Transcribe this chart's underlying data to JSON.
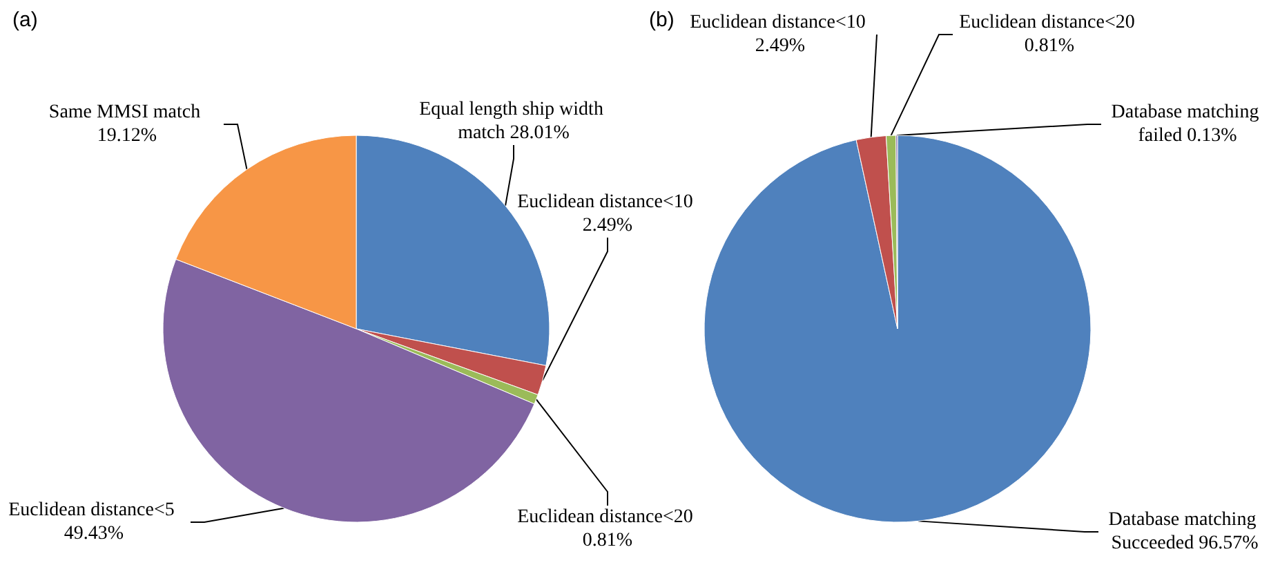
{
  "chart_data": [
    {
      "type": "pie",
      "title": "(a)",
      "categories": [
        "Equal length ship width match",
        "Euclidean distance<10",
        "Euclidean distance<20",
        "Euclidean distance<5",
        "Same MMSI match"
      ],
      "values": [
        28.01,
        2.49,
        0.81,
        49.43,
        19.12
      ],
      "value_labels": [
        "28.01%",
        "2.49%",
        "0.81%",
        "49.43%",
        "19.12%"
      ],
      "colors": [
        "#4f81bd",
        "#c0504d",
        "#9bbb59",
        "#8064a2",
        "#f79646"
      ],
      "legend": false
    },
    {
      "type": "pie",
      "title": "(b)",
      "categories": [
        "Database matching Succeeded",
        "Euclidean distance<10",
        "Euclidean distance<20",
        "Database matching failed"
      ],
      "values": [
        96.57,
        2.49,
        0.81,
        0.13
      ],
      "value_labels": [
        "96.57%",
        "2.49%",
        "0.81%",
        "0.13%"
      ],
      "colors": [
        "#4f81bd",
        "#c0504d",
        "#9bbb59",
        "#8064a2"
      ],
      "legend": false
    }
  ]
}
